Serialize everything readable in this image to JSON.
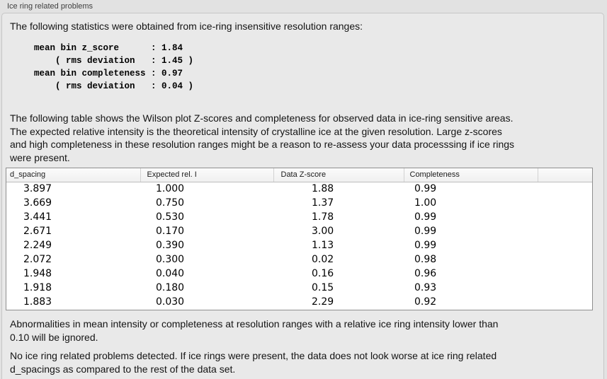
{
  "panel": {
    "title": "Ice ring related problems",
    "intro": "The following statistics were obtained from ice-ring insensitive resolution ranges:",
    "stats_block": "mean bin z_score      : 1.84\n    ( rms deviation   : 1.45 )\nmean bin completeness : 0.97\n    ( rms deviation   : 0.04 )",
    "table_description": "The following table shows the Wilson plot Z-scores and completeness for observed data in ice-ring sensitive areas.\nThe expected relative intensity is the theoretical intensity of crystalline ice at the given resolution. Large z-scores\nand high completeness in these resolution ranges might be a reason to re-assess your data processsing if ice rings\nwere present.",
    "note_ignore": "Abnormalities in mean intensity or completeness at resolution ranges with a relative ice ring intensity lower than\n0.10 will be ignored.",
    "conclusion": "No ice ring related problems detected. If ice rings were present, the data does not look worse at ice ring related\nd_spacings as compared to the rest of the data set."
  },
  "table": {
    "columns": [
      "d_spacing",
      "Expected rel. I",
      "Data Z-score",
      "Completeness"
    ],
    "rows": [
      [
        "3.897",
        "1.000",
        "1.88",
        "0.99"
      ],
      [
        "3.669",
        "0.750",
        "1.37",
        "1.00"
      ],
      [
        "3.441",
        "0.530",
        "1.78",
        "0.99"
      ],
      [
        "2.671",
        "0.170",
        "3.00",
        "0.99"
      ],
      [
        "2.249",
        "0.390",
        "1.13",
        "0.99"
      ],
      [
        "2.072",
        "0.300",
        "0.02",
        "0.98"
      ],
      [
        "1.948",
        "0.040",
        "0.16",
        "0.96"
      ],
      [
        "1.918",
        "0.180",
        "0.15",
        "0.93"
      ],
      [
        "1.883",
        "0.030",
        "2.29",
        "0.92"
      ]
    ]
  },
  "colors": {
    "page_bg": "#e2e2e2",
    "panel_bg": "#e9e9e9",
    "panel_border": "#c6c6c6",
    "table_border": "#8f8f8f",
    "table_header_bg": "#f5f5f5",
    "table_body_bg": "#ffffff",
    "text": "#141414"
  }
}
